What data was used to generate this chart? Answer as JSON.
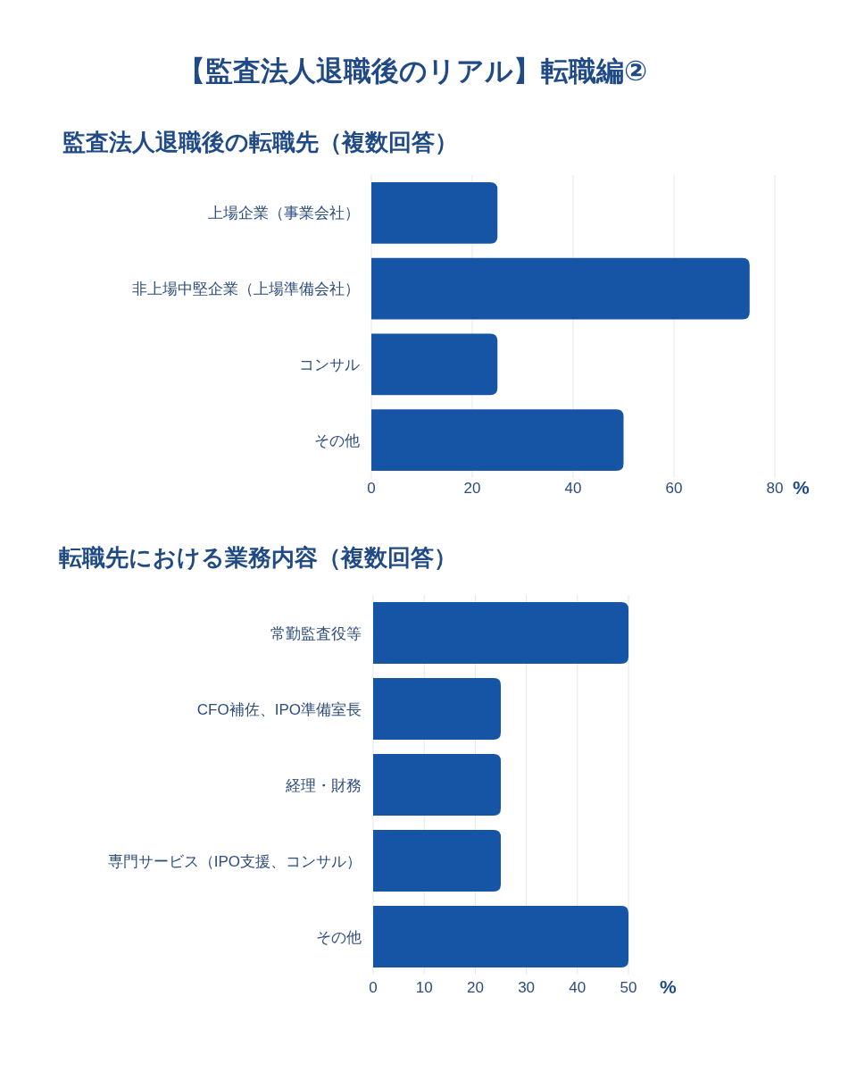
{
  "chart_data": [
    {
      "type": "bar",
      "orientation": "horizontal",
      "title": "【監査法人退職後のリアル】転職編②",
      "subtitle": "監査法人退職後の転職先（複数回答）",
      "xlabel": "%",
      "categories": [
        "上場企業（事業会社）",
        "非上場中堅企業（上場準備会社）",
        "コンサル",
        "その他"
      ],
      "values": [
        25,
        75,
        25,
        50
      ],
      "color": "#1655a6",
      "xlim": [
        0,
        80
      ],
      "xticks": [
        0,
        20,
        40,
        60,
        80
      ],
      "grid": "x"
    },
    {
      "type": "bar",
      "orientation": "horizontal",
      "title": "転職先における業務内容（複数回答）",
      "xlabel": "%",
      "categories": [
        "常勤監査役等",
        "CFO補佐、IPO準備室長",
        "経理・財務",
        "専門サービス（IPO支援、コンサル）",
        "その他"
      ],
      "values": [
        50,
        25,
        25,
        25,
        50
      ],
      "color": "#1655a6",
      "xlim": [
        0,
        50
      ],
      "xticks": [
        0,
        10,
        20,
        30,
        40,
        50
      ],
      "grid": "x"
    }
  ]
}
